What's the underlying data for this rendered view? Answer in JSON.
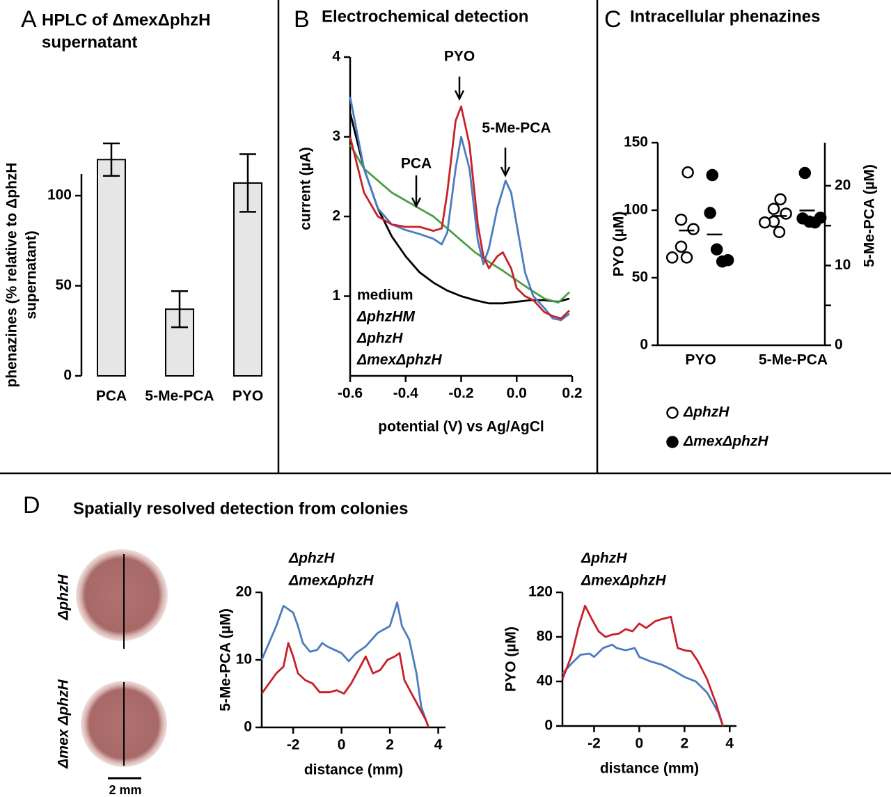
{
  "figure": {
    "panel_letters": [
      "A",
      "B",
      "C",
      "D"
    ],
    "d_title": "Spatially resolved detection from colonies",
    "colony_labels": [
      "ΔphzH",
      "Δmex ΔphzH"
    ],
    "scale_bar": "2 mm"
  },
  "chart_data": [
    {
      "type": "bar",
      "title": [
        "HPLC of ΔmexΔphzH",
        "supernatant"
      ],
      "y_label": [
        "phenazines (% relative to ΔphzH",
        "supernatant)"
      ],
      "categories": [
        "PCA",
        "5-Me-PCA",
        "PYO"
      ],
      "values": [
        120,
        37,
        107
      ],
      "errors": [
        9,
        10,
        16
      ],
      "color": "#e6e6e6",
      "ylim": [
        0,
        112
      ],
      "yticks": [
        0,
        50,
        100
      ]
    },
    {
      "type": "line",
      "title": "Electrochemical detection",
      "x_label": "potential (V) vs Ag/AgCl",
      "y_label": "current (µA)",
      "xlim": [
        -0.6,
        0.2
      ],
      "xticks": [
        -0.6,
        -0.4,
        -0.2,
        {
          "value": 0,
          "label": "0.0"
        },
        0.2
      ],
      "ylim": [
        0,
        4
      ],
      "yticks": [
        1,
        2,
        3,
        4
      ],
      "annotations": [
        "PCA",
        "PYO",
        "5-Me-PCA"
      ],
      "series": [
        {
          "name": "medium",
          "color": "#000000",
          "x": [
            -0.6,
            -0.55,
            -0.5,
            -0.45,
            -0.4,
            -0.35,
            -0.3,
            -0.25,
            -0.2,
            -0.15,
            -0.1,
            -0.05,
            0,
            0.05,
            0.1,
            0.15,
            0.19
          ],
          "values": [
            3.3,
            2.6,
            2.1,
            1.75,
            1.5,
            1.3,
            1.17,
            1.07,
            1.0,
            0.95,
            0.91,
            0.91,
            0.93,
            0.95,
            0.95,
            0.93,
            0.97
          ]
        },
        {
          "name": "ΔphzHM",
          "color": "#4a9e44",
          "x": [
            -0.6,
            -0.55,
            -0.5,
            -0.45,
            -0.4,
            -0.35,
            -0.3,
            -0.25,
            -0.2,
            -0.15,
            -0.1,
            -0.05,
            0,
            0.05,
            0.1,
            0.15,
            0.19
          ],
          "values": [
            2.9,
            2.6,
            2.45,
            2.3,
            2.2,
            2.1,
            2.0,
            1.85,
            1.7,
            1.55,
            1.43,
            1.32,
            1.2,
            1.08,
            0.97,
            0.92,
            1.05
          ]
        },
        {
          "name": "ΔphzH",
          "color": "#4a7cc0",
          "x": [
            -0.6,
            -0.55,
            -0.5,
            -0.45,
            -0.4,
            -0.35,
            -0.3,
            -0.27,
            -0.25,
            -0.22,
            -0.2,
            -0.17,
            -0.14,
            -0.12,
            -0.1,
            -0.07,
            -0.04,
            -0.02,
            0,
            0.03,
            0.06,
            0.1,
            0.13,
            0.16,
            0.19
          ],
          "values": [
            3.5,
            2.6,
            2.1,
            1.9,
            1.83,
            1.78,
            1.72,
            1.65,
            1.8,
            2.6,
            3.0,
            2.6,
            1.7,
            1.4,
            1.6,
            2.1,
            2.45,
            2.3,
            1.9,
            1.3,
            1.0,
            0.85,
            0.72,
            0.7,
            0.78
          ]
        },
        {
          "name": "ΔmexΔphzH",
          "color": "#c8202a",
          "x": [
            -0.6,
            -0.55,
            -0.5,
            -0.45,
            -0.4,
            -0.35,
            -0.3,
            -0.27,
            -0.25,
            -0.22,
            -0.2,
            -0.17,
            -0.14,
            -0.12,
            -0.1,
            -0.07,
            -0.05,
            -0.02,
            0,
            0.03,
            0.06,
            0.1,
            0.13,
            0.16,
            0.19
          ],
          "values": [
            3.0,
            2.3,
            2.0,
            1.9,
            1.87,
            1.87,
            1.82,
            1.85,
            2.3,
            3.2,
            3.38,
            2.9,
            1.9,
            1.5,
            1.35,
            1.5,
            1.55,
            1.35,
            1.1,
            1.0,
            0.95,
            0.8,
            0.75,
            0.72,
            0.82
          ]
        }
      ]
    },
    {
      "type": "strip",
      "title": "Intracellular phenazines",
      "y_label": "PYO (µM)",
      "y2_label": "5-Me-PCA (µM)",
      "categories": [
        "PYO",
        "5-Me-PCA"
      ],
      "ylim": [
        0,
        150
      ],
      "yticks": [
        0,
        50,
        100,
        150
      ],
      "y2lim": [
        0,
        25.4
      ],
      "y2ticks": [
        0,
        10,
        20
      ],
      "y2minor": [
        5,
        15
      ],
      "series": [
        {
          "name": "ΔphzH",
          "color": "#000000",
          "filled": false,
          "values": [
            [
              128,
              93,
              86,
              73,
              65,
              65
            ],
            [
              18.3,
              15.5,
              16.5,
              17.1,
              14.2,
              15.4
            ]
          ],
          "means": [
            85,
            16.2
          ]
        },
        {
          "name": "ΔmexΔphzH",
          "color": "#000000",
          "filled": true,
          "values": [
            [
              126,
              98,
              71,
              62,
              63
            ],
            [
              21.6,
              15.9,
              15.5,
              15.4,
              16.0
            ]
          ],
          "means": [
            82,
            16.9
          ]
        }
      ]
    },
    {
      "type": "line",
      "y_label": "5-Me-PCA (µM)",
      "x_label": "distance (mm)",
      "xlim": [
        -3.3,
        4.3
      ],
      "xticks": [
        -2,
        0,
        2,
        4
      ],
      "ylim": [
        0,
        20
      ],
      "yticks": [
        0,
        10,
        20
      ],
      "series": [
        {
          "name": "ΔphzH",
          "color": "#4a7cc0",
          "x": [
            -3.3,
            -2.7,
            -2.4,
            -2.2,
            -2,
            -1.8,
            -1.6,
            -1.3,
            -1,
            -0.8,
            -0.6,
            -0.3,
            0,
            0.3,
            0.6,
            1,
            1.5,
            2,
            2.3,
            2.5,
            2.8,
            3.1,
            3.3,
            3.6
          ],
          "values": [
            10,
            15,
            18,
            17.5,
            17,
            15,
            12.5,
            11.2,
            11.5,
            12.5,
            12,
            11.5,
            11,
            9.8,
            11,
            12,
            14,
            15,
            18.5,
            15,
            13,
            8,
            3,
            0
          ]
        },
        {
          "name": "ΔmexΔphzH",
          "color": "#c8202a",
          "x": [
            -3.3,
            -2.7,
            -2.4,
            -2.2,
            -2,
            -1.8,
            -1.5,
            -1.2,
            -0.9,
            -0.5,
            -0.2,
            0.1,
            0.4,
            1,
            1.3,
            1.6,
            1.9,
            2.2,
            2.4,
            2.6,
            2.9,
            3.2,
            3.5,
            3.6
          ],
          "values": [
            5,
            8,
            9,
            12.5,
            10.5,
            8,
            7,
            6.5,
            5.2,
            5.2,
            5.5,
            5,
            6.5,
            10.5,
            8,
            8.5,
            10,
            10.5,
            11,
            7,
            5,
            3,
            1,
            0
          ]
        }
      ]
    },
    {
      "type": "line",
      "y_label": "PYO (µM)",
      "x_label": "distance (mm)",
      "xlim": [
        -3.4,
        4.3
      ],
      "xticks": [
        -2,
        0,
        2,
        4
      ],
      "ylim": [
        0,
        120
      ],
      "yticks": [
        0,
        40,
        80,
        120
      ],
      "series": [
        {
          "name": "ΔphzH",
          "color": "#4a7cc0",
          "x": [
            -3.4,
            -3,
            -2.6,
            -2.2,
            -2,
            -1.6,
            -1.2,
            -1,
            -0.6,
            -0.2,
            0,
            0.5,
            1,
            1.5,
            2,
            2.5,
            3,
            3.5,
            3.7
          ],
          "values": [
            47,
            56,
            64,
            65,
            62,
            70,
            73,
            70,
            68,
            70,
            62,
            58,
            55,
            50,
            44,
            40,
            30,
            12,
            0
          ]
        },
        {
          "name": "ΔmexΔphzH",
          "color": "#c8202a",
          "x": [
            -3.4,
            -3,
            -2.7,
            -2.4,
            -2.1,
            -1.8,
            -1.5,
            -1.2,
            -0.9,
            -0.6,
            -0.3,
            0,
            0.3,
            0.7,
            1,
            1.4,
            1.7,
            2,
            2.3,
            2.6,
            3,
            3.4,
            3.7
          ],
          "values": [
            42,
            63,
            88,
            108,
            96,
            85,
            80,
            82,
            83,
            87,
            85,
            92,
            88,
            94,
            96,
            98,
            70,
            68,
            67,
            58,
            42,
            20,
            0
          ]
        }
      ]
    }
  ]
}
